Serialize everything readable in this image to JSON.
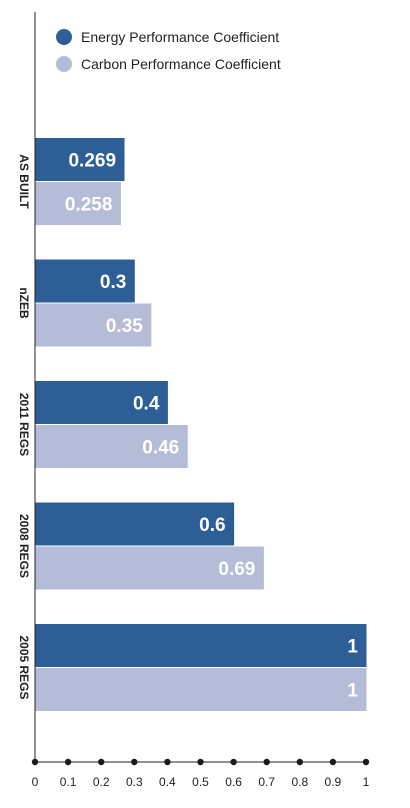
{
  "chart_data": {
    "type": "bar",
    "orientation": "horizontal",
    "categories": [
      "AS BUILT",
      "nZEB",
      "2011 REGS",
      "2008 REGS",
      "2005 REGS"
    ],
    "series": [
      {
        "name": "Energy Performance Coefficient",
        "values": [
          0.269,
          0.3,
          0.4,
          0.6,
          1
        ],
        "labels": [
          "0.269",
          "0.3",
          "0.4",
          "0.6",
          "1"
        ],
        "color": "#2d5f96"
      },
      {
        "name": "Carbon Performance Coefficient",
        "values": [
          0.258,
          0.35,
          0.46,
          0.69,
          1
        ],
        "labels": [
          "0.258",
          "0.35",
          "0.46",
          "0.69",
          "1"
        ],
        "color": "#b4bcd8"
      }
    ],
    "xlim": [
      0,
      1
    ],
    "xticks": [
      "0",
      "0.1",
      "0.2",
      "0.3",
      "0.4",
      "0.5",
      "0.6",
      "0.7",
      "0.8",
      "0.9",
      "1"
    ],
    "title": "",
    "xlabel": "",
    "ylabel": "",
    "grid": false,
    "legend": "top-left"
  }
}
